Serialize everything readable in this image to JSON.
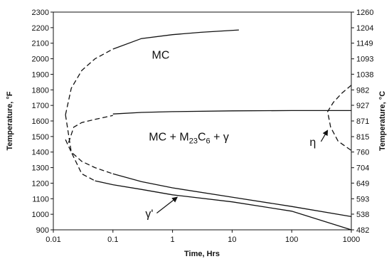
{
  "chart_data": {
    "type": "line",
    "title": "",
    "xlabel": "Time, Hrs",
    "ylabel": "Temperature, °F",
    "y2label": "Temperature, °C",
    "xscale": "log",
    "xlim": [
      0.01,
      1000
    ],
    "ylim": [
      900,
      2300
    ],
    "y2lim": [
      482,
      1260
    ],
    "grid": false,
    "legend": "none",
    "x_ticks": [
      "0.01",
      "0.1",
      "1",
      "10",
      "100",
      "1000"
    ],
    "y_ticks": [
      "900",
      "1000",
      "1100",
      "1200",
      "1300",
      "1400",
      "1500",
      "1600",
      "1700",
      "1800",
      "1900",
      "2000",
      "2100",
      "2200",
      "2300"
    ],
    "y2_ticks": [
      "482",
      "538",
      "593",
      "649",
      "704",
      "760",
      "815",
      "871",
      "927",
      "982",
      "1038",
      "1093",
      "1149",
      "1204",
      "1260"
    ],
    "series": [
      {
        "style": "solid",
        "color": "#111111",
        "x": [
          0.1,
          0.3,
          1,
          3,
          13
        ],
        "y": [
          2062,
          2130,
          2155,
          2170,
          2185
        ]
      },
      {
        "style": "dashed",
        "color": "#111111",
        "x": [
          0.016,
          0.02,
          0.03,
          0.05,
          0.1
        ],
        "y": [
          1640,
          1810,
          1925,
          2000,
          2062
        ]
      },
      {
        "style": "dashed",
        "color": "#111111",
        "x": [
          0.016,
          0.02,
          0.03,
          0.05
        ],
        "y": [
          1640,
          1400,
          1260,
          1215
        ]
      },
      {
        "style": "solid",
        "color": "#111111",
        "x": [
          0.05,
          0.1,
          0.3,
          1,
          10,
          100,
          1000
        ],
        "y": [
          1215,
          1190,
          1160,
          1125,
          1080,
          1020,
          900
        ]
      },
      {
        "style": "dashed",
        "color": "#111111",
        "x": [
          0.018,
          0.022,
          0.03,
          0.05,
          0.1
        ],
        "y": [
          1460,
          1560,
          1590,
          1610,
          1635
        ]
      },
      {
        "style": "solid",
        "color": "#111111",
        "x": [
          0.1,
          0.3,
          1,
          10,
          100,
          1000
        ],
        "y": [
          1645,
          1655,
          1660,
          1665,
          1667,
          1667
        ]
      },
      {
        "style": "dashed",
        "color": "#111111",
        "x": [
          0.016,
          0.02,
          0.03,
          0.05,
          0.1
        ],
        "y": [
          1480,
          1400,
          1340,
          1300,
          1260
        ]
      },
      {
        "style": "solid",
        "color": "#111111",
        "x": [
          0.1,
          0.3,
          1,
          10,
          100,
          1000
        ],
        "y": [
          1260,
          1210,
          1170,
          1110,
          1050,
          985
        ]
      },
      {
        "style": "dashed",
        "color": "#111111",
        "x": [
          1000,
          700,
          500,
          400,
          450,
          600,
          1000
        ],
        "y": [
          1830,
          1780,
          1720,
          1660,
          1560,
          1470,
          1410
        ]
      }
    ],
    "annotations": [
      {
        "id": "mc",
        "parts": [
          "MC"
        ],
        "x": 0.45,
        "y": 2000
      },
      {
        "id": "mixture",
        "parts": [
          "MC + M",
          "23",
          "C",
          "6",
          " + γ"
        ],
        "x": 0.4,
        "y": 1475
      },
      {
        "id": "eta",
        "parts": [
          "η"
        ],
        "x": 200,
        "y": 1440,
        "arrow_to": {
          "x": 400,
          "y": 1540
        }
      },
      {
        "id": "gamma",
        "parts": [
          "γ'"
        ],
        "x": 0.35,
        "y": 980,
        "arrow_to": {
          "x": 1.2,
          "y": 1110
        }
      }
    ]
  }
}
